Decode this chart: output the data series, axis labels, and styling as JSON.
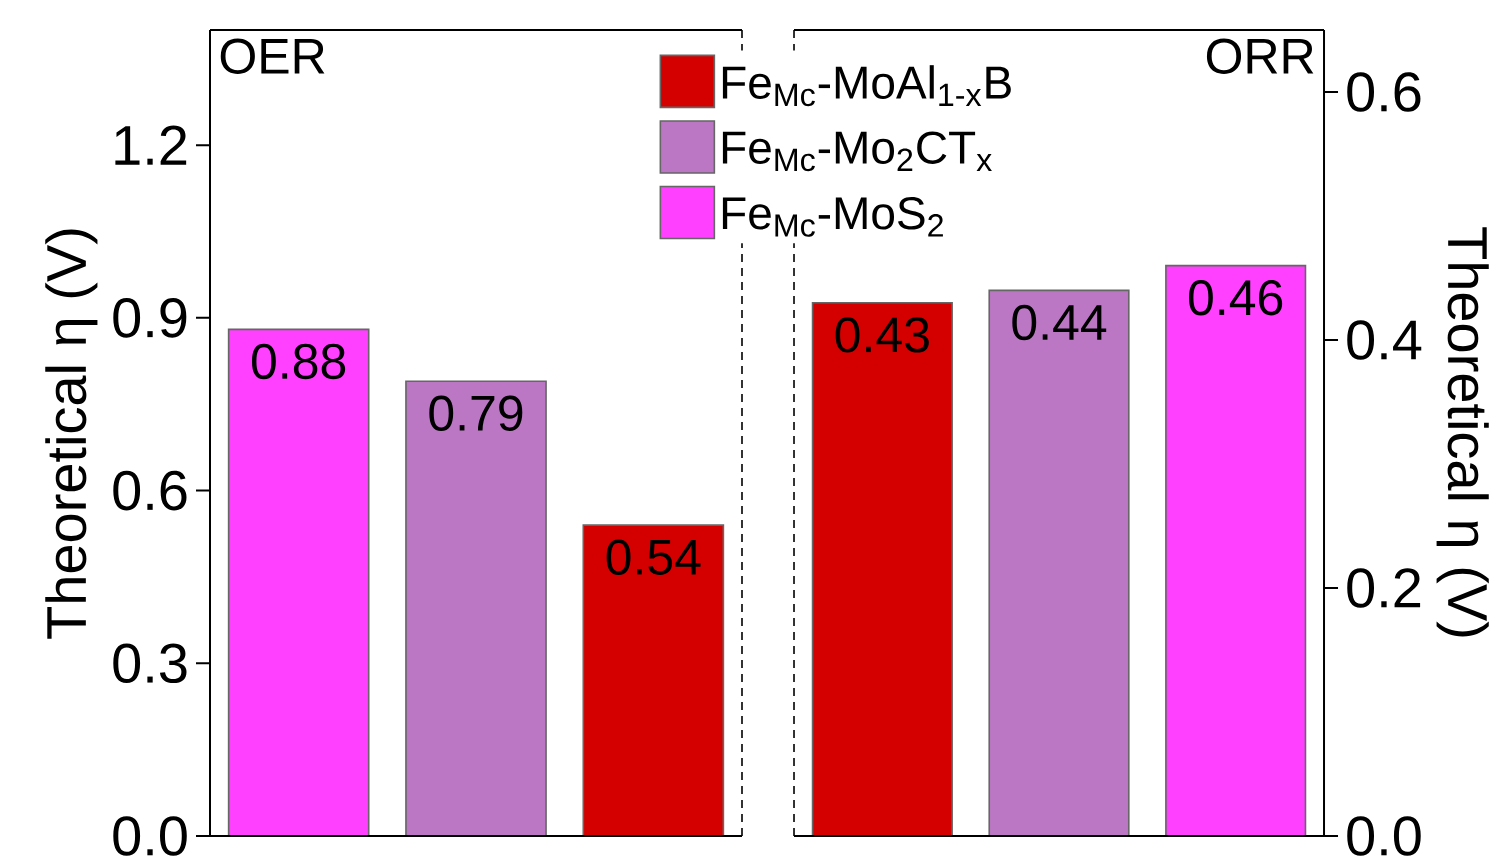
{
  "chart_data": [
    {
      "type": "bar",
      "title": "OER",
      "ylabel": "Theoretical η (V)",
      "categories": [
        null,
        null,
        null
      ],
      "series": [
        {
          "color": "#d40000",
          "values": [
            null,
            null,
            0.54
          ]
        },
        {
          "color": "#bb77c4",
          "values": [
            null,
            0.79,
            null
          ]
        },
        {
          "color": "#ff40ff",
          "values": [
            0.88,
            null,
            null
          ]
        }
      ],
      "ylim": [
        0,
        1.4
      ],
      "yticks": [
        {
          "value": 0,
          "label": "0.0"
        },
        0.3,
        0.6,
        0.9,
        1.2
      ],
      "data_labels": true
    },
    {
      "type": "bar",
      "title": "ORR",
      "y2label": "Theoretical η (V)",
      "categories": [
        null,
        null,
        null
      ],
      "series": [
        {
          "name": "Fe$_{Mc}$-MoAl$_{1-x}$B",
          "color": "#d40000",
          "axis": "y2",
          "values": [
            0.43,
            null,
            null
          ]
        },
        {
          "name": "Fe$_{Mc}$-Mo$_{2}$CT$_{x}$",
          "color": "#bb77c4",
          "axis": "y2",
          "values": [
            null,
            0.44,
            null
          ]
        },
        {
          "name": "Fe$_{Mc}$-MoS$_{2}$",
          "color": "#ff40ff",
          "axis": "y2",
          "values": [
            null,
            null,
            0.46
          ]
        }
      ],
      "y2lim": [
        0,
        0.65
      ],
      "y2ticks": [
        {
          "value": 0,
          "label": "0.0"
        },
        0.2,
        0.4,
        0.6
      ],
      "data_labels": true,
      "legend": "top left"
    }
  ]
}
